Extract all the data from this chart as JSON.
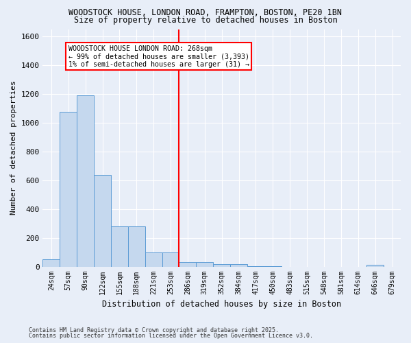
{
  "title1": "WOODSTOCK HOUSE, LONDON ROAD, FRAMPTON, BOSTON, PE20 1BN",
  "title2": "Size of property relative to detached houses in Boston",
  "xlabel": "Distribution of detached houses by size in Boston",
  "ylabel": "Number of detached properties",
  "categories": [
    "24sqm",
    "57sqm",
    "90sqm",
    "122sqm",
    "155sqm",
    "188sqm",
    "221sqm",
    "253sqm",
    "286sqm",
    "319sqm",
    "352sqm",
    "384sqm",
    "417sqm",
    "450sqm",
    "483sqm",
    "515sqm",
    "548sqm",
    "581sqm",
    "614sqm",
    "646sqm",
    "679sqm"
  ],
  "values": [
    50,
    1075,
    1190,
    635,
    280,
    280,
    100,
    100,
    30,
    30,
    15,
    15,
    5,
    5,
    0,
    0,
    0,
    0,
    0,
    10,
    0
  ],
  "bar_color": "#c5d8ee",
  "bar_edge_color": "#5b9bd5",
  "bg_color": "#e8eef8",
  "grid_color": "#ffffff",
  "vline_color": "red",
  "annotation_text": "WOODSTOCK HOUSE LONDON ROAD: 268sqm\n← 99% of detached houses are smaller (3,393)\n1% of semi-detached houses are larger (31) →",
  "ylim": [
    0,
    1650
  ],
  "yticks": [
    0,
    200,
    400,
    600,
    800,
    1000,
    1200,
    1400,
    1600
  ],
  "footer1": "Contains HM Land Registry data © Crown copyright and database right 2025.",
  "footer2": "Contains public sector information licensed under the Open Government Licence v3.0."
}
